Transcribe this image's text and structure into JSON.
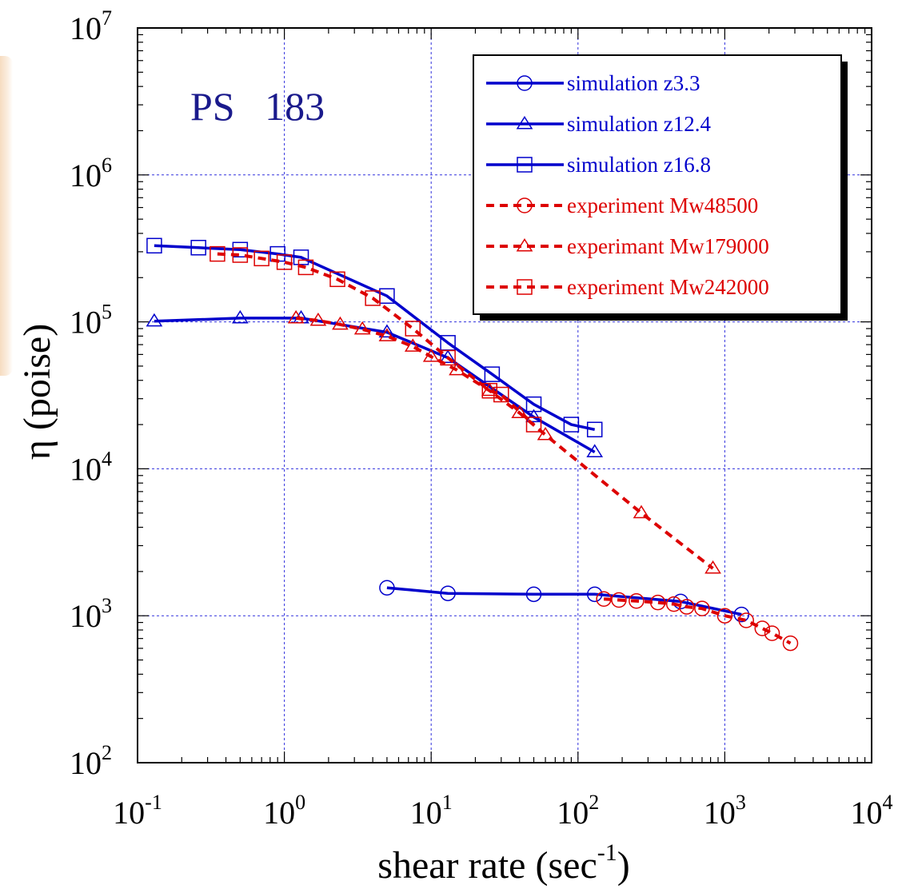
{
  "chart_data": {
    "type": "line",
    "x_scale": "log",
    "y_scale": "log",
    "xlabel": "shear rate (sec",
    "xlabel_sup": "-1",
    "xlabel_end": ")",
    "ylabel": "η (poise)",
    "annotation": "PS   183",
    "xlim": [
      0.1,
      10000
    ],
    "ylim": [
      100,
      10000000
    ],
    "grid": true,
    "legend_position": "top-right",
    "x_ticks": [
      {
        "base": "10",
        "exp": "-1",
        "value": 0.1
      },
      {
        "base": "10",
        "exp": "0",
        "value": 1
      },
      {
        "base": "10",
        "exp": "1",
        "value": 10
      },
      {
        "base": "10",
        "exp": "2",
        "value": 100
      },
      {
        "base": "10",
        "exp": "3",
        "value": 1000
      },
      {
        "base": "10",
        "exp": "4",
        "value": 10000
      }
    ],
    "y_ticks": [
      {
        "base": "10",
        "exp": "2",
        "value": 100
      },
      {
        "base": "10",
        "exp": "3",
        "value": 1000
      },
      {
        "base": "10",
        "exp": "4",
        "value": 10000
      },
      {
        "base": "10",
        "exp": "5",
        "value": 100000
      },
      {
        "base": "10",
        "exp": "6",
        "value": 1000000
      },
      {
        "base": "10",
        "exp": "7",
        "value": 10000000
      }
    ],
    "series": [
      {
        "name": "simulation z3.3",
        "color": "#0000cc",
        "line": "solid",
        "marker": "circle",
        "x": [
          5,
          13,
          50,
          130,
          500,
          1300
        ],
        "y": [
          1550,
          1420,
          1400,
          1400,
          1250,
          1020
        ]
      },
      {
        "name": "simulation z12.4",
        "color": "#0000cc",
        "line": "solid",
        "marker": "triangle",
        "x": [
          0.13,
          0.5,
          1.3,
          5,
          13,
          50,
          130
        ],
        "y": [
          101000,
          106000,
          106000,
          85000,
          57000,
          22500,
          13000
        ]
      },
      {
        "name": "simulation z16.8",
        "color": "#0000cc",
        "line": "solid",
        "marker": "square",
        "x": [
          0.13,
          0.26,
          0.5,
          0.9,
          1.3,
          5,
          13,
          26,
          50,
          90,
          130
        ],
        "y": [
          330000,
          320000,
          310000,
          290000,
          275000,
          150000,
          72000,
          44000,
          27500,
          20000,
          18500
        ]
      },
      {
        "name": "experiment Mw48500",
        "color": "#dd0000",
        "line": "dashed",
        "marker": "circle",
        "x": [
          150,
          190,
          250,
          350,
          450,
          550,
          700,
          1000,
          1400,
          1800,
          2100,
          2800
        ],
        "y": [
          1300,
          1280,
          1260,
          1230,
          1200,
          1150,
          1120,
          1000,
          930,
          820,
          760,
          650
        ]
      },
      {
        "name": "experimant Mw179000",
        "color": "#dd0000",
        "line": "dashed",
        "marker": "triangle",
        "x": [
          1.2,
          1.7,
          2.4,
          3.4,
          5,
          7.5,
          10,
          15,
          25,
          40,
          60,
          270,
          830
        ],
        "y": [
          106000,
          102000,
          96000,
          89000,
          80000,
          68000,
          58000,
          47000,
          34000,
          24000,
          17000,
          5000,
          2100
        ]
      },
      {
        "name": "experiment Mw242000",
        "color": "#dd0000",
        "line": "dashed",
        "marker": "square",
        "x": [
          0.35,
          0.5,
          0.7,
          1.0,
          1.4,
          2.3,
          4,
          7.5,
          13,
          25,
          30,
          50
        ],
        "y": [
          290000,
          285000,
          270000,
          255000,
          235000,
          195000,
          145000,
          90000,
          57000,
          34000,
          32000,
          20000
        ]
      }
    ]
  }
}
